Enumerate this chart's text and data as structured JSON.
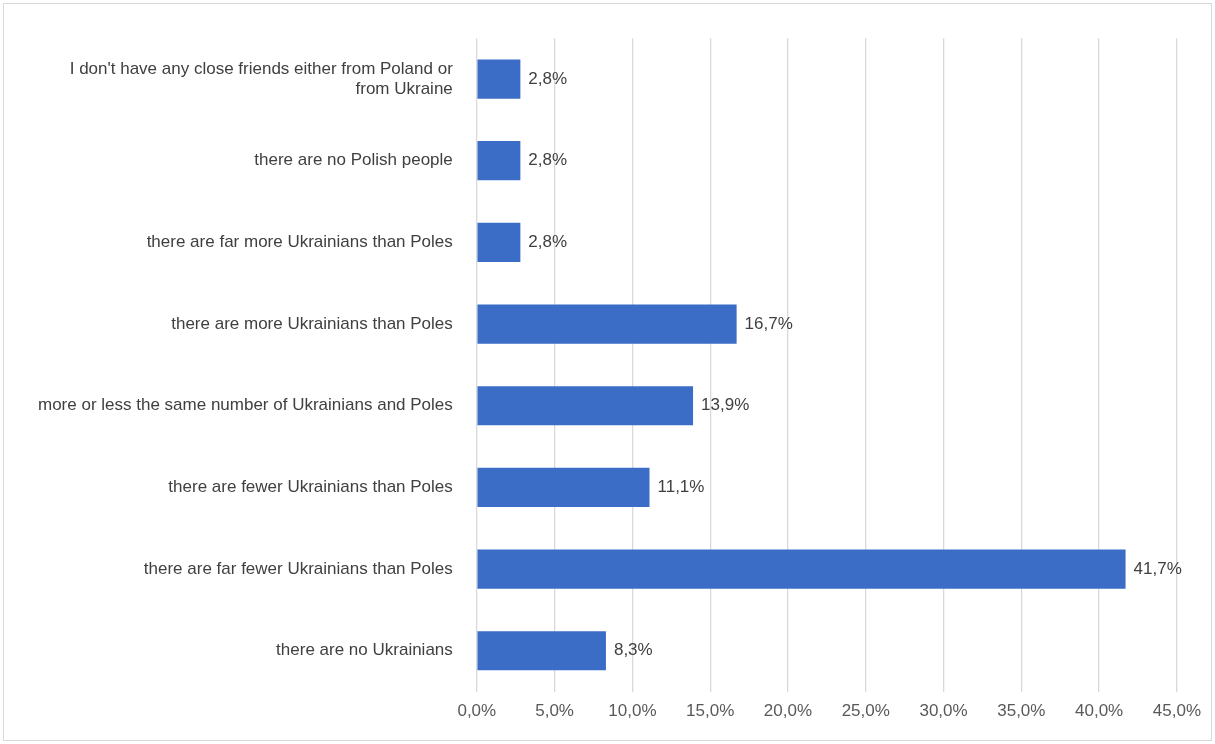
{
  "chart_data": {
    "type": "bar",
    "orientation": "horizontal",
    "categories": [
      "I don't have any close friends either from Poland or from Ukraine",
      "there are no Polish people",
      "there are far more Ukrainians than Poles",
      "there are more Ukrainians than Poles",
      "more or less the same number of Ukrainians and Poles",
      "there are fewer Ukrainians than Poles",
      "there are far fewer Ukrainians than Poles",
      "there are no Ukrainians"
    ],
    "values": [
      2.8,
      2.8,
      2.8,
      16.7,
      13.9,
      11.1,
      41.7,
      8.3
    ],
    "value_labels": [
      "2,8%",
      "2,8%",
      "2,8%",
      "16,7%",
      "13,9%",
      "11,1%",
      "41,7%",
      "8,3%"
    ],
    "color": "#3b6cc6",
    "xlim": [
      0,
      45
    ],
    "xticks": [
      {
        "value": 0,
        "label": "0,0%"
      },
      {
        "value": 5,
        "label": "5,0%"
      },
      {
        "value": 10,
        "label": "10,0%"
      },
      {
        "value": 15,
        "label": "15,0%"
      },
      {
        "value": 20,
        "label": "20,0%"
      },
      {
        "value": 25,
        "label": "25,0%"
      },
      {
        "value": 30,
        "label": "30,0%"
      },
      {
        "value": 35,
        "label": "35,0%"
      },
      {
        "value": 40,
        "label": "40,0%"
      },
      {
        "value": 45,
        "label": "45,0%"
      }
    ],
    "grid": "x"
  }
}
